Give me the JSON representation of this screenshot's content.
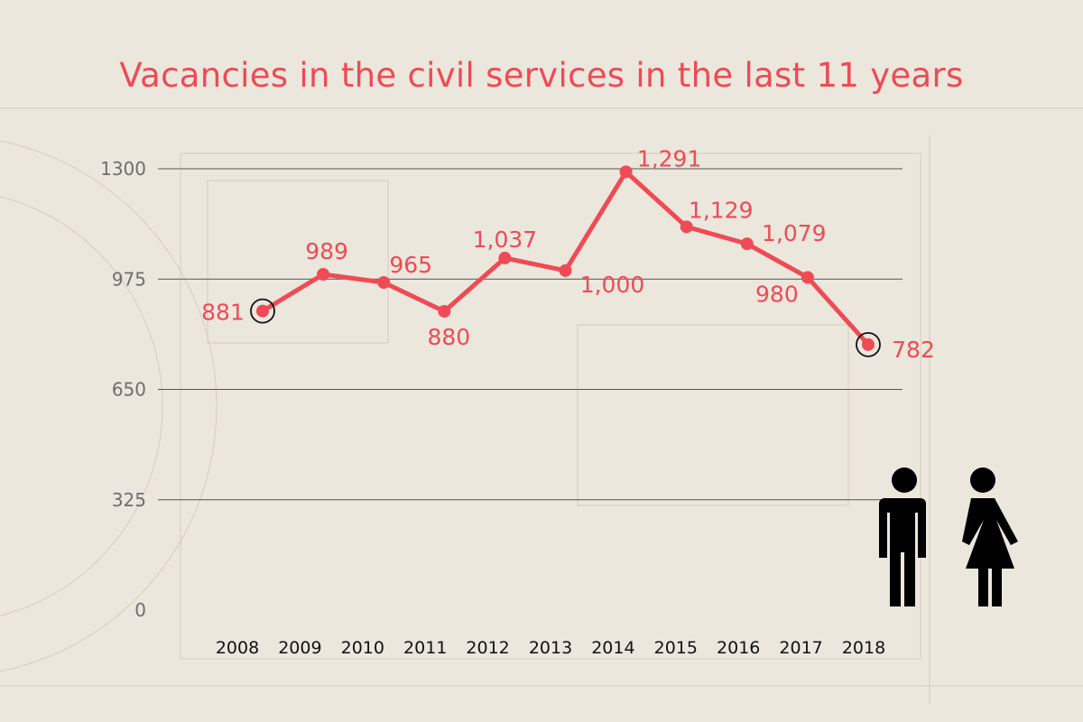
{
  "chart_data": {
    "type": "line",
    "title": "Vacancies in the civil services in the last 11 years",
    "xlabel": "",
    "ylabel": "",
    "categories": [
      "2008",
      "2009",
      "2010",
      "2011",
      "2012",
      "2013",
      "2014",
      "2015",
      "2016",
      "2017",
      "2018"
    ],
    "values": [
      881,
      989,
      965,
      880,
      1037,
      1000,
      1291,
      1129,
      1079,
      980,
      782
    ],
    "data_labels": [
      "881",
      "989",
      "965",
      "880",
      "1,037",
      "1,000",
      "1,291",
      "1,129",
      "1,079",
      "980",
      "782"
    ],
    "yticks": [
      0,
      325,
      650,
      975,
      1300
    ],
    "ylim": [
      0,
      1300
    ],
    "grid": true,
    "highlighted_points": [
      "2008",
      "2018"
    ],
    "colors": {
      "line": "#ef4a55",
      "title": "#ef4a55",
      "background": "#ebe7dc",
      "gridline": "#555555"
    },
    "icons": [
      "man-icon",
      "woman-icon"
    ]
  }
}
